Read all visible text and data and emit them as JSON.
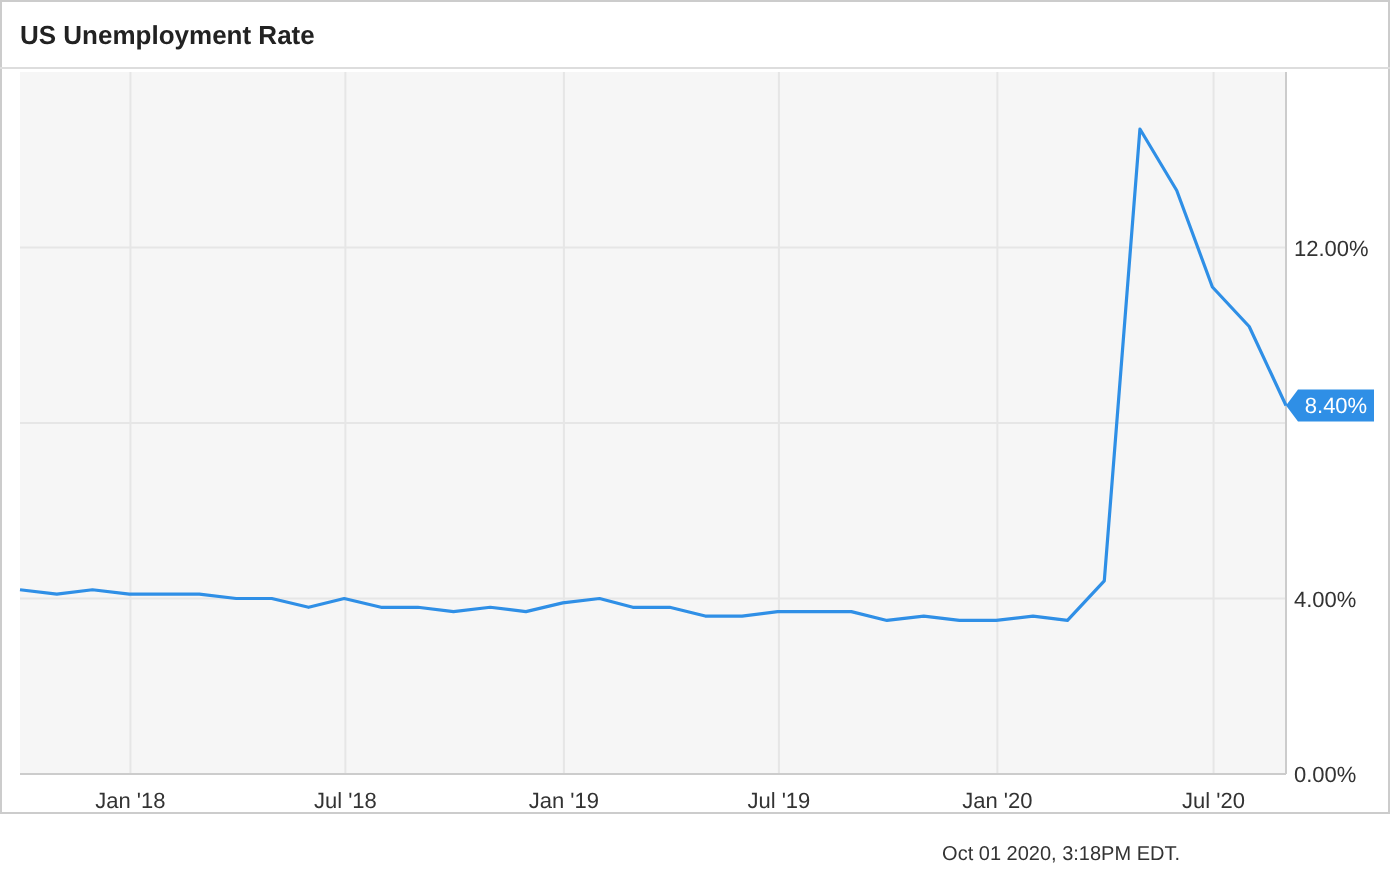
{
  "chart_data": {
    "type": "line",
    "title": "US Unemployment Rate",
    "x": [
      "2017-09-30",
      "2017-10-31",
      "2017-11-30",
      "2017-12-31",
      "2018-01-31",
      "2018-02-28",
      "2018-03-31",
      "2018-04-30",
      "2018-05-31",
      "2018-06-30",
      "2018-07-31",
      "2018-08-31",
      "2018-09-30",
      "2018-10-31",
      "2018-11-30",
      "2018-12-31",
      "2019-01-31",
      "2019-02-28",
      "2019-03-31",
      "2019-04-30",
      "2019-05-31",
      "2019-06-30",
      "2019-07-31",
      "2019-08-31",
      "2019-09-30",
      "2019-10-31",
      "2019-11-30",
      "2019-12-31",
      "2020-01-31",
      "2020-02-29",
      "2020-03-31",
      "2020-04-30",
      "2020-05-31",
      "2020-06-30",
      "2020-07-31",
      "2020-08-31"
    ],
    "series": [
      {
        "color": "#2f8fe6",
        "values": [
          4.2,
          4.1,
          4.2,
          4.1,
          4.1,
          4.1,
          4.0,
          4.0,
          3.8,
          4.0,
          3.8,
          3.8,
          3.7,
          3.8,
          3.7,
          3.9,
          4.0,
          3.8,
          3.8,
          3.6,
          3.6,
          3.7,
          3.7,
          3.7,
          3.5,
          3.6,
          3.5,
          3.5,
          3.6,
          3.5,
          4.4,
          14.7,
          13.3,
          11.1,
          10.2,
          8.4
        ]
      }
    ],
    "xlim": [
      "2017-09-30",
      "2020-08-31"
    ],
    "xticks": [
      {
        "value": "2018-01-01",
        "label": "Jan '18"
      },
      {
        "value": "2018-07-01",
        "label": "Jul '18"
      },
      {
        "value": "2019-01-01",
        "label": "Jan '19"
      },
      {
        "value": "2019-07-01",
        "label": "Jul '19"
      },
      {
        "value": "2020-01-01",
        "label": "Jan '20"
      },
      {
        "value": "2020-07-01",
        "label": "Jul '20"
      }
    ],
    "ylim": [
      0,
      16
    ],
    "yticks": [
      {
        "value": 0,
        "label": "0.00%"
      },
      {
        "value": 4,
        "label": "4.00%"
      },
      {
        "value": 8,
        "label": null
      },
      {
        "value": 12,
        "label": "12.00%"
      }
    ],
    "grid": true,
    "marker": "none",
    "line_style": "solid",
    "annotations": [
      {
        "text": "8.40%",
        "x": "2020-08-31",
        "y": 8.4
      },
      "Oct 01 2020, 3:18PM EDT."
    ]
  }
}
